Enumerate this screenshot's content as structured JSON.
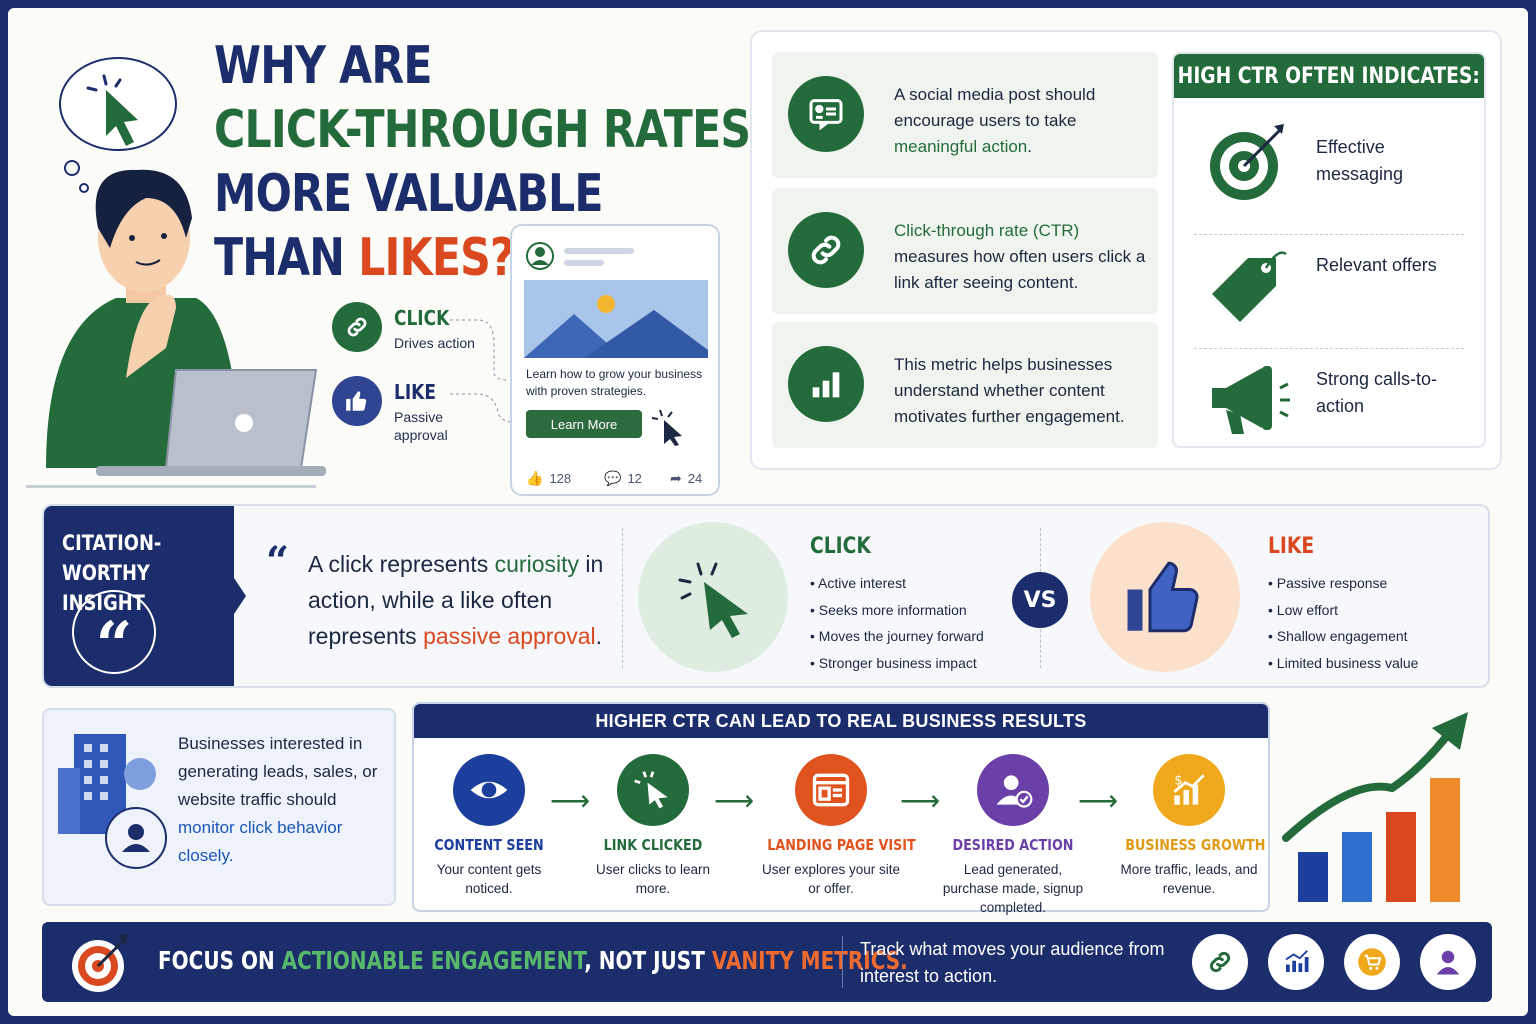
{
  "title": {
    "line1": "WHY ARE",
    "line2": "CLICK-THROUGH RATES",
    "line3": "MORE VALUABLE",
    "line4a": "THAN ",
    "line4b": "LIKES?"
  },
  "legend": {
    "click_title": "CLICK",
    "click_desc": "Drives action",
    "like_title": "LIKE",
    "like_desc": "Passive approval"
  },
  "post": {
    "caption": "Learn how to grow your business with proven strategies.",
    "button": "Learn More",
    "likes": "128",
    "comments": "12",
    "shares": "24"
  },
  "info": [
    {
      "pre": "A social media post should encourage users to take ",
      "em": "meaningful action",
      "post": "."
    },
    {
      "pre": "",
      "em": "Click-through rate (CTR)",
      "post": " measures how often users click a link after seeing content."
    },
    {
      "pre": "This metric helps businesses understand whether content motivates further engagement.",
      "em": "",
      "post": ""
    }
  ],
  "indicators": {
    "title": "HIGH CTR OFTEN INDICATES:",
    "items": [
      "Effective messaging",
      "Relevant offers",
      "Strong calls-to-action"
    ]
  },
  "insight": {
    "label": "CITATION-WORTHY INSIGHT",
    "q1": "A click represents ",
    "q_em1": "curiosity",
    "q2": " in action, while a like often represents ",
    "q_em2": "passive approval",
    "q3": "."
  },
  "compare": {
    "click_title": "CLICK",
    "click_items": [
      "Active interest",
      "Seeks more information",
      "Moves the journey forward",
      "Stronger business impact"
    ],
    "vs": "VS",
    "like_title": "LIKE",
    "like_items": [
      "Passive response",
      "Low effort",
      "Shallow engagement",
      "Limited business value"
    ]
  },
  "leads": {
    "pre": "Businesses interested in generating leads, sales, or website traffic should ",
    "em": "monitor click behavior closely."
  },
  "process": {
    "title": "HIGHER CTR CAN LEAD TO REAL BUSINESS RESULTS",
    "steps": [
      {
        "title": "CONTENT SEEN",
        "desc": "Your content gets noticed.",
        "color": "#1c3f9e"
      },
      {
        "title": "LINK CLICKED",
        "desc": "User clicks to learn more.",
        "color": "#246b3b"
      },
      {
        "title": "LANDING PAGE VISIT",
        "desc": "User explores your site or offer.",
        "color": "#e0531e"
      },
      {
        "title": "DESIRED ACTION",
        "desc": "Lead generated, purchase made, signup completed.",
        "color": "#6a3fa8"
      },
      {
        "title": "BUSINESS GROWTH",
        "desc": "More traffic, leads, and revenue.",
        "color": "#f0a91c"
      }
    ]
  },
  "footer": {
    "a": "FOCUS ON ",
    "b": "ACTIONABLE ENGAGEMENT",
    "c": ", NOT JUST ",
    "d": "VANITY METRICS.",
    "sub": "Track what moves your audience from interest to action."
  },
  "colors": {
    "navy": "#1c2d6b",
    "green": "#246b3b",
    "red": "#d9481f",
    "blue": "#1b57b8"
  }
}
